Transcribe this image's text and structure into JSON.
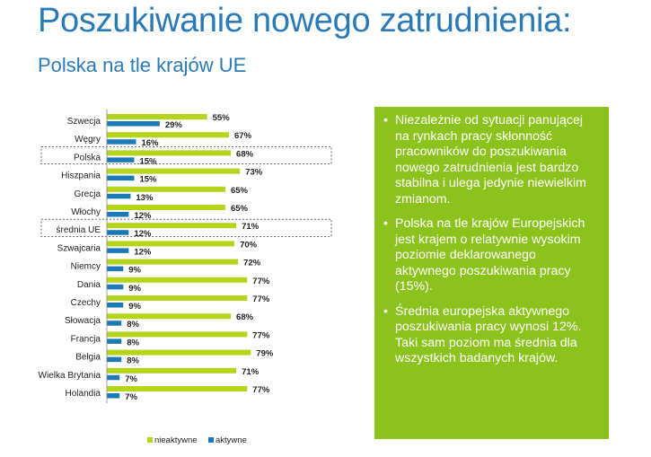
{
  "header": {
    "title": "Poszukiwanie nowego zatrudnienia:",
    "subtitle": "Polska na tle krajów UE"
  },
  "colors": {
    "inactive": "#b5d51d",
    "active": "#1a7ab5",
    "panel": "#8cc21c"
  },
  "chart_data": {
    "type": "bar",
    "orientation": "horizontal",
    "categories": [
      "Szwecja",
      "Węgry",
      "Polska",
      "Hiszpania",
      "Grecja",
      "Włochy",
      "średnia UE",
      "Szwajcaria",
      "Niemcy",
      "Dania",
      "Czechy",
      "Słowacja",
      "Francja",
      "Belgia",
      "Wielka Brytania",
      "Holandia"
    ],
    "series": [
      {
        "name": "nieaktywne",
        "values": [
          55,
          67,
          68,
          73,
          65,
          65,
          71,
          70,
          72,
          77,
          77,
          68,
          77,
          79,
          71,
          77
        ]
      },
      {
        "name": "aktywne",
        "values": [
          29,
          16,
          15,
          15,
          13,
          12,
          12,
          12,
          9,
          9,
          9,
          8,
          8,
          8,
          7,
          7
        ]
      }
    ],
    "value_suffix": "%",
    "highlighted": [
      "Polska",
      "średnia UE"
    ],
    "legend_position": "bottom",
    "grid": false
  },
  "panel": {
    "bullet_char": "•",
    "bullets": [
      "Niezależnie od sytuacji panującej na rynkach pracy skłonność pracowników do poszukiwania nowego zatrudnienia jest bardzo stabilna i ulega jedynie niewielkim zmianom.",
      "Polska na tle krajów Europejskich jest krajem o relatywnie wysokim poziomie deklarowanego aktywnego poszukiwania pracy (15%).",
      "Średnia europejska aktywnego poszukiwania pracy wynosi 12%.  Taki sam poziom ma średnia dla wszystkich badanych krajów."
    ]
  }
}
